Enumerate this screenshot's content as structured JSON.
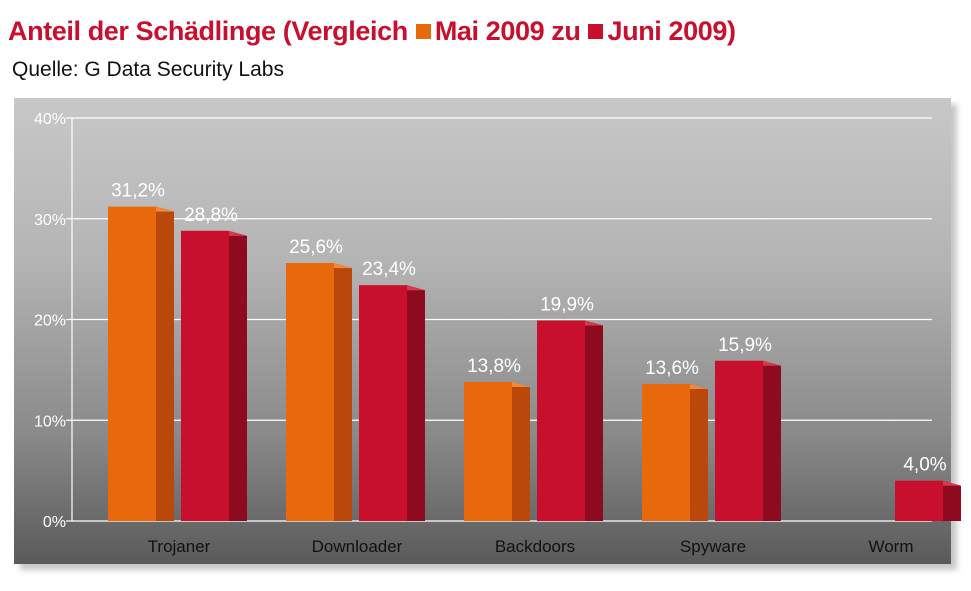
{
  "header": {
    "title_prefix": "Anteil der Schädlinge (Vergleich",
    "legend_may": "Mai 2009 zu",
    "legend_june": "Juni 2009)",
    "source": "Quelle: G Data Security Labs"
  },
  "colors": {
    "title": "#c8102e",
    "series_may": "#e8680c",
    "series_may_side": "#b9480a",
    "series_june": "#c8102e",
    "series_june_side": "#8e0b1f"
  },
  "chart_data": {
    "type": "bar",
    "categories": [
      "Trojaner",
      "Downloader",
      "Backdoors",
      "Spyware",
      "Worm"
    ],
    "series": [
      {
        "name": "Mai 2009",
        "values": [
          31.2,
          25.6,
          13.8,
          13.6,
          null
        ],
        "labels": [
          "31,2%",
          "25,6%",
          "13,8%",
          "13,6%",
          ""
        ]
      },
      {
        "name": "Juni 2009",
        "values": [
          28.8,
          23.4,
          19.9,
          15.9,
          4.0
        ],
        "labels": [
          "28,8%",
          "23,4%",
          "19,9%",
          "15,9%",
          "4,0%"
        ]
      }
    ],
    "yticks": [
      "0%",
      "10%",
      "20%",
      "30%",
      "40%"
    ],
    "ylim": [
      0,
      40
    ],
    "grid": true
  }
}
